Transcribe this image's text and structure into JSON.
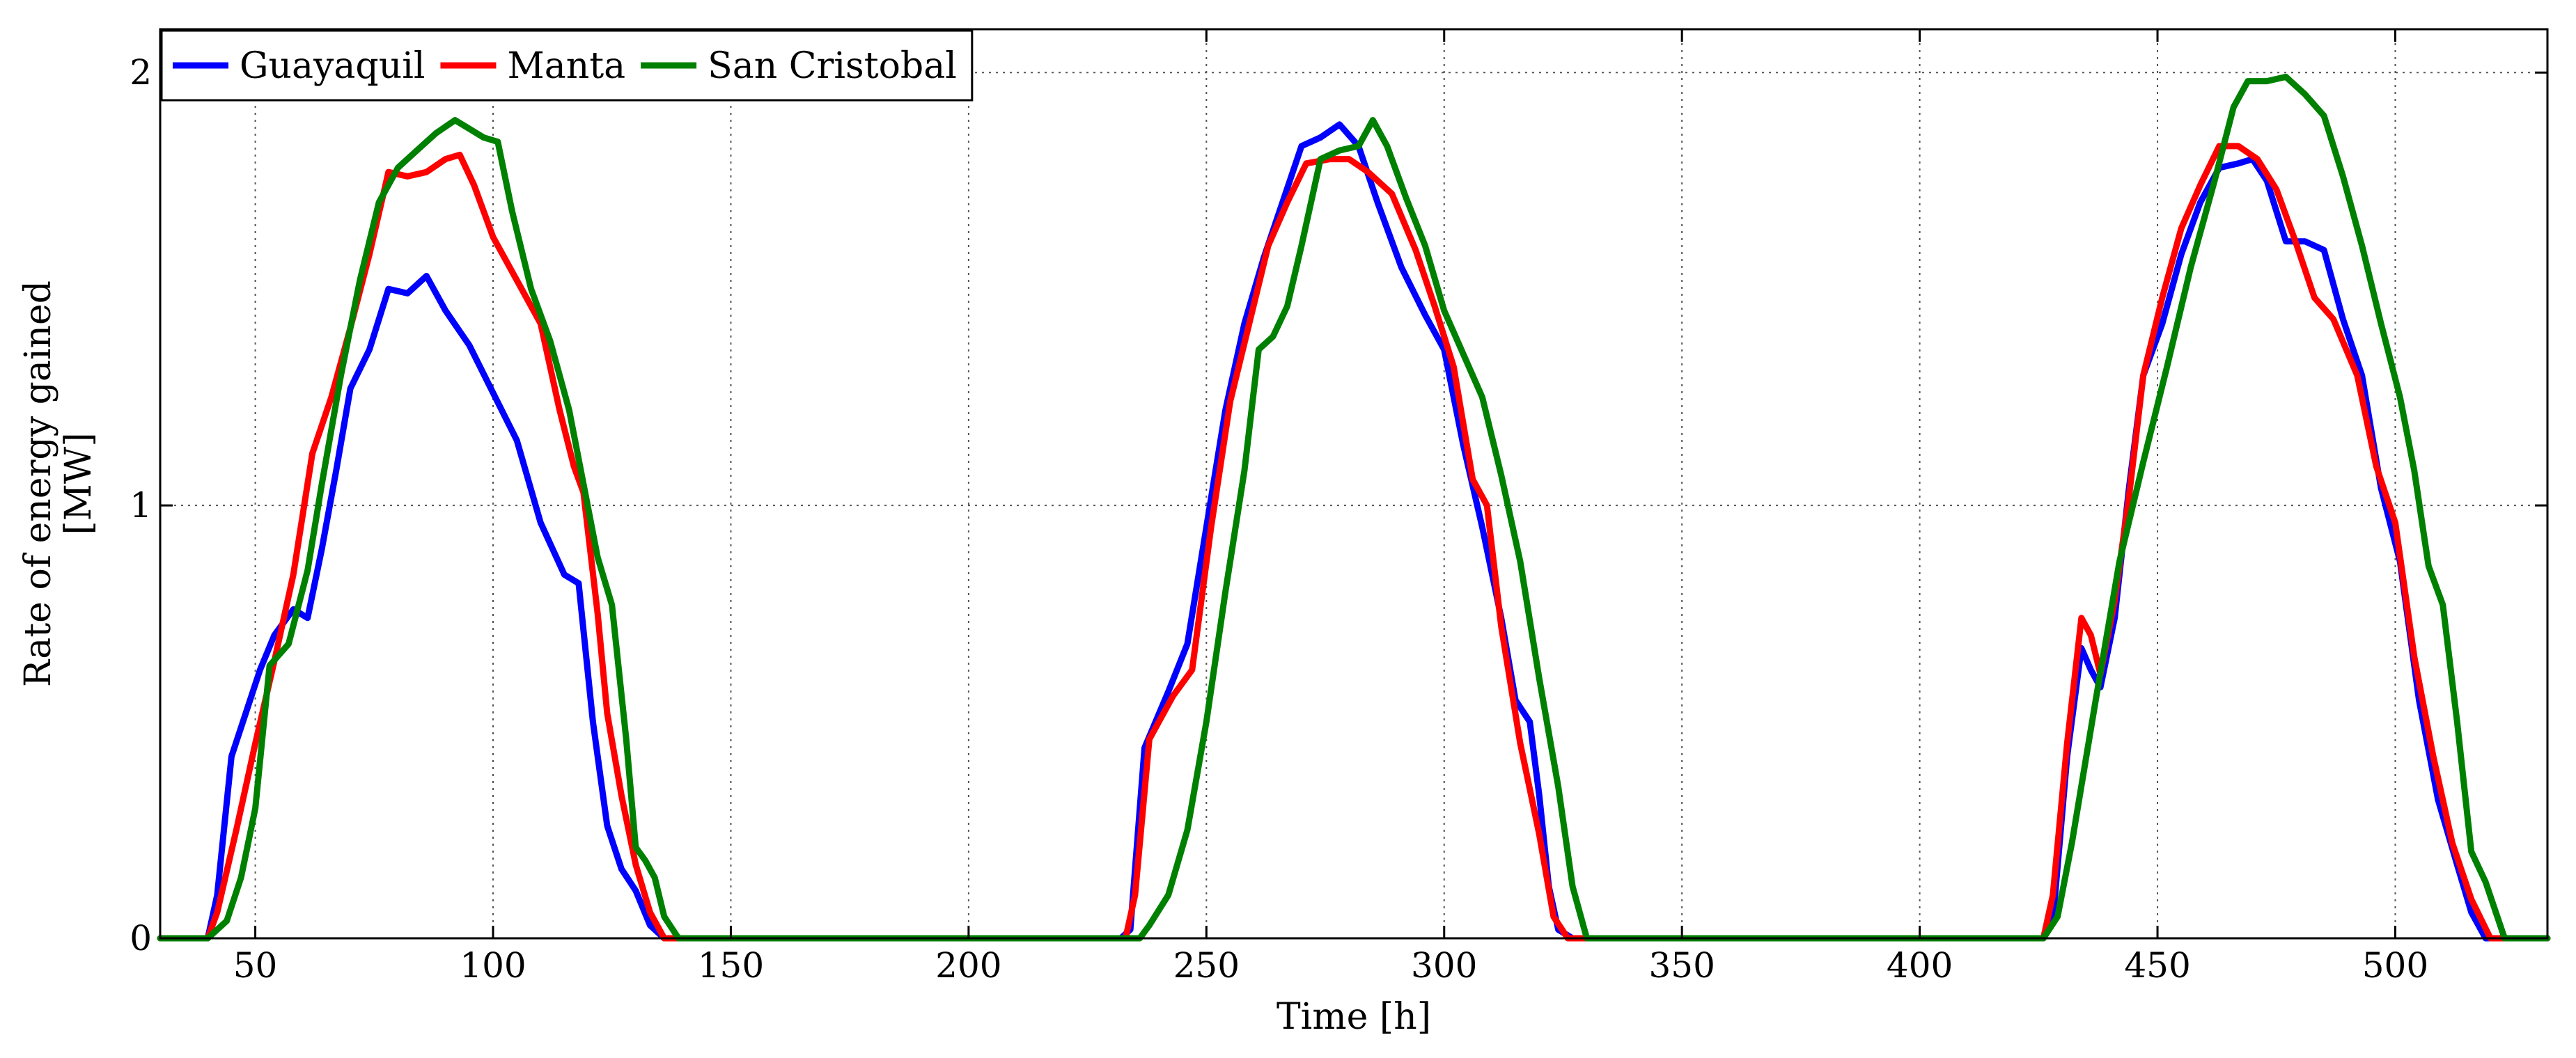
{
  "chart_data": {
    "type": "line",
    "title": "",
    "xlabel": "Time [h]",
    "ylabel_line1": "Rate of energy gained",
    "ylabel_line2": "[MW]",
    "xlim": [
      30,
      532
    ],
    "ylim": [
      0,
      2.1
    ],
    "xticks": [
      50,
      100,
      150,
      200,
      250,
      300,
      350,
      400,
      450,
      500
    ],
    "yticks": [
      0,
      1,
      2
    ],
    "grid": true,
    "legend_position": "top-left",
    "series": [
      {
        "name": "Guayaquil",
        "color": "#0000ff",
        "points": [
          [
            30,
            0
          ],
          [
            40,
            0
          ],
          [
            42,
            0.1
          ],
          [
            45,
            0.42
          ],
          [
            48,
            0.52
          ],
          [
            51,
            0.62
          ],
          [
            54,
            0.7
          ],
          [
            58,
            0.76
          ],
          [
            61,
            0.74
          ],
          [
            64,
            0.9
          ],
          [
            67,
            1.08
          ],
          [
            70,
            1.27
          ],
          [
            74,
            1.36
          ],
          [
            78,
            1.5
          ],
          [
            82,
            1.49
          ],
          [
            86,
            1.53
          ],
          [
            90,
            1.45
          ],
          [
            95,
            1.37
          ],
          [
            100,
            1.26
          ],
          [
            105,
            1.15
          ],
          [
            110,
            0.96
          ],
          [
            115,
            0.84
          ],
          [
            118,
            0.82
          ],
          [
            121,
            0.5
          ],
          [
            124,
            0.26
          ],
          [
            127,
            0.16
          ],
          [
            130,
            0.11
          ],
          [
            133,
            0.03
          ],
          [
            136,
            0
          ],
          [
            232,
            0
          ],
          [
            234,
            0.02
          ],
          [
            237,
            0.44
          ],
          [
            242,
            0.57
          ],
          [
            246,
            0.68
          ],
          [
            250,
            0.95
          ],
          [
            254,
            1.22
          ],
          [
            258,
            1.42
          ],
          [
            262,
            1.57
          ],
          [
            266,
            1.7
          ],
          [
            270,
            1.83
          ],
          [
            274,
            1.85
          ],
          [
            278,
            1.88
          ],
          [
            282,
            1.83
          ],
          [
            286,
            1.7
          ],
          [
            291,
            1.55
          ],
          [
            296,
            1.44
          ],
          [
            300,
            1.36
          ],
          [
            304,
            1.14
          ],
          [
            308,
            0.95
          ],
          [
            312,
            0.74
          ],
          [
            315,
            0.55
          ],
          [
            318,
            0.5
          ],
          [
            320,
            0.33
          ],
          [
            322,
            0.12
          ],
          [
            324,
            0.02
          ],
          [
            327,
            0
          ],
          [
            426,
            0
          ],
          [
            428,
            0.04
          ],
          [
            431,
            0.42
          ],
          [
            434,
            0.67
          ],
          [
            436,
            0.62
          ],
          [
            438,
            0.58
          ],
          [
            441,
            0.74
          ],
          [
            444,
            1.04
          ],
          [
            447,
            1.3
          ],
          [
            451,
            1.42
          ],
          [
            455,
            1.58
          ],
          [
            459,
            1.7
          ],
          [
            463,
            1.78
          ],
          [
            467,
            1.79
          ],
          [
            470,
            1.8
          ],
          [
            473,
            1.75
          ],
          [
            477,
            1.61
          ],
          [
            481,
            1.61
          ],
          [
            485,
            1.59
          ],
          [
            489,
            1.43
          ],
          [
            493,
            1.3
          ],
          [
            497,
            1.04
          ],
          [
            501,
            0.87
          ],
          [
            505,
            0.55
          ],
          [
            509,
            0.32
          ],
          [
            513,
            0.17
          ],
          [
            516,
            0.06
          ],
          [
            519,
            0
          ],
          [
            532,
            0
          ]
        ]
      },
      {
        "name": "Manta",
        "color": "#ff0000",
        "points": [
          [
            30,
            0
          ],
          [
            40,
            0
          ],
          [
            42,
            0.06
          ],
          [
            46,
            0.25
          ],
          [
            50,
            0.45
          ],
          [
            54,
            0.64
          ],
          [
            58,
            0.84
          ],
          [
            62,
            1.12
          ],
          [
            66,
            1.25
          ],
          [
            70,
            1.41
          ],
          [
            74,
            1.58
          ],
          [
            78,
            1.77
          ],
          [
            82,
            1.76
          ],
          [
            86,
            1.77
          ],
          [
            90,
            1.8
          ],
          [
            93,
            1.81
          ],
          [
            96,
            1.74
          ],
          [
            100,
            1.62
          ],
          [
            105,
            1.52
          ],
          [
            110,
            1.42
          ],
          [
            114,
            1.22
          ],
          [
            117,
            1.09
          ],
          [
            119,
            1.03
          ],
          [
            122,
            0.75
          ],
          [
            124,
            0.52
          ],
          [
            127,
            0.33
          ],
          [
            130,
            0.17
          ],
          [
            133,
            0.06
          ],
          [
            136,
            0
          ],
          [
            233,
            0
          ],
          [
            235,
            0.1
          ],
          [
            238,
            0.46
          ],
          [
            243,
            0.56
          ],
          [
            247,
            0.62
          ],
          [
            251,
            0.95
          ],
          [
            255,
            1.24
          ],
          [
            259,
            1.42
          ],
          [
            263,
            1.6
          ],
          [
            267,
            1.7
          ],
          [
            271,
            1.79
          ],
          [
            276,
            1.8
          ],
          [
            280,
            1.8
          ],
          [
            284,
            1.77
          ],
          [
            289,
            1.72
          ],
          [
            294,
            1.59
          ],
          [
            298,
            1.46
          ],
          [
            302,
            1.32
          ],
          [
            306,
            1.06
          ],
          [
            309,
            1.0
          ],
          [
            312,
            0.72
          ],
          [
            316,
            0.45
          ],
          [
            320,
            0.24
          ],
          [
            323,
            0.05
          ],
          [
            326,
            0
          ],
          [
            426,
            0
          ],
          [
            428,
            0.1
          ],
          [
            431,
            0.45
          ],
          [
            434,
            0.74
          ],
          [
            436,
            0.7
          ],
          [
            438,
            0.61
          ],
          [
            441,
            0.78
          ],
          [
            444,
            1.02
          ],
          [
            447,
            1.3
          ],
          [
            451,
            1.48
          ],
          [
            455,
            1.64
          ],
          [
            459,
            1.74
          ],
          [
            463,
            1.83
          ],
          [
            467,
            1.83
          ],
          [
            471,
            1.8
          ],
          [
            475,
            1.73
          ],
          [
            479,
            1.61
          ],
          [
            483,
            1.48
          ],
          [
            487,
            1.43
          ],
          [
            492,
            1.3
          ],
          [
            496,
            1.09
          ],
          [
            500,
            0.96
          ],
          [
            504,
            0.65
          ],
          [
            508,
            0.42
          ],
          [
            512,
            0.22
          ],
          [
            516,
            0.09
          ],
          [
            520,
            0
          ],
          [
            532,
            0
          ]
        ]
      },
      {
        "name": "San Cristobal",
        "color": "#008000",
        "points": [
          [
            30,
            0
          ],
          [
            40,
            0
          ],
          [
            44,
            0.04
          ],
          [
            47,
            0.14
          ],
          [
            50,
            0.3
          ],
          [
            53,
            0.63
          ],
          [
            57,
            0.68
          ],
          [
            61,
            0.85
          ],
          [
            64,
            1.05
          ],
          [
            68,
            1.3
          ],
          [
            72,
            1.52
          ],
          [
            76,
            1.7
          ],
          [
            80,
            1.78
          ],
          [
            84,
            1.82
          ],
          [
            88,
            1.86
          ],
          [
            92,
            1.89
          ],
          [
            95,
            1.87
          ],
          [
            98,
            1.85
          ],
          [
            101,
            1.84
          ],
          [
            104,
            1.68
          ],
          [
            108,
            1.5
          ],
          [
            112,
            1.38
          ],
          [
            116,
            1.22
          ],
          [
            119,
            1.05
          ],
          [
            122,
            0.88
          ],
          [
            125,
            0.77
          ],
          [
            128,
            0.46
          ],
          [
            130,
            0.21
          ],
          [
            132,
            0.18
          ],
          [
            134,
            0.14
          ],
          [
            136,
            0.05
          ],
          [
            139,
            0
          ],
          [
            236,
            0
          ],
          [
            238,
            0.03
          ],
          [
            242,
            0.1
          ],
          [
            246,
            0.25
          ],
          [
            250,
            0.5
          ],
          [
            254,
            0.8
          ],
          [
            258,
            1.08
          ],
          [
            261,
            1.36
          ],
          [
            264,
            1.39
          ],
          [
            267,
            1.46
          ],
          [
            270,
            1.6
          ],
          [
            274,
            1.8
          ],
          [
            278,
            1.82
          ],
          [
            282,
            1.83
          ],
          [
            285,
            1.89
          ],
          [
            288,
            1.83
          ],
          [
            292,
            1.71
          ],
          [
            296,
            1.6
          ],
          [
            300,
            1.45
          ],
          [
            304,
            1.35
          ],
          [
            308,
            1.25
          ],
          [
            312,
            1.07
          ],
          [
            316,
            0.87
          ],
          [
            320,
            0.6
          ],
          [
            324,
            0.35
          ],
          [
            327,
            0.12
          ],
          [
            330,
            0
          ],
          [
            426,
            0
          ],
          [
            429,
            0.05
          ],
          [
            432,
            0.22
          ],
          [
            437,
            0.55
          ],
          [
            442,
            0.87
          ],
          [
            447,
            1.1
          ],
          [
            452,
            1.32
          ],
          [
            457,
            1.55
          ],
          [
            462,
            1.75
          ],
          [
            466,
            1.92
          ],
          [
            469,
            1.98
          ],
          [
            473,
            1.98
          ],
          [
            477,
            1.99
          ],
          [
            481,
            1.95
          ],
          [
            485,
            1.9
          ],
          [
            489,
            1.76
          ],
          [
            493,
            1.6
          ],
          [
            497,
            1.42
          ],
          [
            501,
            1.25
          ],
          [
            504,
            1.08
          ],
          [
            507,
            0.86
          ],
          [
            510,
            0.77
          ],
          [
            513,
            0.5
          ],
          [
            516,
            0.2
          ],
          [
            519,
            0.13
          ],
          [
            523,
            0
          ],
          [
            532,
            0
          ]
        ]
      }
    ]
  }
}
